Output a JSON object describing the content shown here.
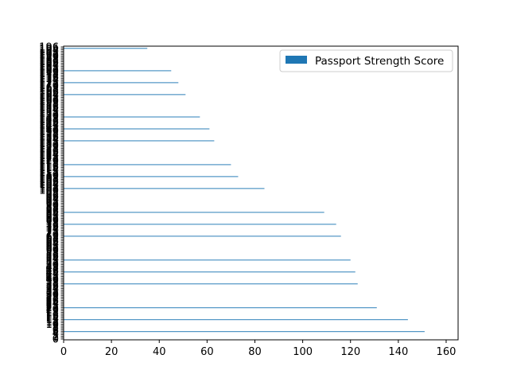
{
  "chart_data": {
    "type": "bar",
    "orientation": "horizontal",
    "title": "",
    "xlabel": "",
    "ylabel": "",
    "xlim": [
      0,
      165
    ],
    "xticks": [
      0,
      20,
      40,
      60,
      80,
      100,
      120,
      140,
      160
    ],
    "ylim": [
      -0.5,
      196.5
    ],
    "y_tick_labels": [
      "0",
      "1",
      "2",
      "3",
      "4",
      "5",
      "6",
      "7",
      "8",
      "9",
      "10",
      "11",
      "12",
      "13",
      "14",
      "15",
      "16",
      "17",
      "18",
      "19",
      "20",
      "21",
      "22",
      "23",
      "24",
      "25",
      "26",
      "27",
      "28",
      "29",
      "30",
      "31",
      "32",
      "33",
      "34",
      "35",
      "36",
      "37",
      "38",
      "39",
      "40",
      "41",
      "42",
      "43",
      "44",
      "45",
      "46",
      "47",
      "48",
      "49",
      "50",
      "51",
      "52",
      "53",
      "54",
      "55",
      "56",
      "57",
      "58",
      "59",
      "60",
      "61",
      "62",
      "63",
      "64",
      "65",
      "66",
      "67",
      "68",
      "69",
      "70",
      "71",
      "72",
      "73",
      "74",
      "75",
      "76",
      "77",
      "78",
      "79",
      "80",
      "81",
      "82",
      "83",
      "84",
      "85",
      "86",
      "87",
      "88",
      "89",
      "90",
      "91",
      "92",
      "93",
      "94",
      "95",
      "96",
      "97",
      "98",
      "99",
      "100",
      "101",
      "102",
      "103",
      "104",
      "105",
      "106",
      "107",
      "108",
      "109",
      "110",
      "111",
      "112",
      "113",
      "114",
      "115",
      "116",
      "117",
      "118",
      "119",
      "120",
      "121",
      "122",
      "123",
      "124",
      "125",
      "126",
      "127",
      "128",
      "129",
      "130",
      "131",
      "132",
      "133",
      "134",
      "135",
      "136",
      "137",
      "138",
      "139",
      "140",
      "141",
      "142",
      "143",
      "144",
      "145",
      "146",
      "147",
      "148",
      "149",
      "150",
      "151",
      "152",
      "153",
      "154",
      "155",
      "156",
      "157",
      "158",
      "159",
      "160",
      "161",
      "162",
      "163",
      "164",
      "165",
      "166",
      "167",
      "168",
      "169",
      "170",
      "171",
      "172",
      "173",
      "174",
      "175",
      "176",
      "177",
      "178",
      "179",
      "180",
      "181",
      "182",
      "183",
      "184",
      "185",
      "186",
      "187",
      "188",
      "189",
      "190",
      "191",
      "192",
      "193",
      "194",
      "195",
      "196"
    ],
    "series": [
      {
        "name": "Passport Strength Score",
        "color": "#1f77b4",
        "points": [
          {
            "y": 5,
            "value": 151
          },
          {
            "y": 13,
            "value": 144
          },
          {
            "y": 21,
            "value": 131
          },
          {
            "y": 37,
            "value": 123
          },
          {
            "y": 45,
            "value": 122
          },
          {
            "y": 53,
            "value": 120
          },
          {
            "y": 69,
            "value": 116
          },
          {
            "y": 77,
            "value": 114
          },
          {
            "y": 85,
            "value": 109
          },
          {
            "y": 101,
            "value": 84
          },
          {
            "y": 109,
            "value": 73
          },
          {
            "y": 117,
            "value": 70
          },
          {
            "y": 133,
            "value": 63
          },
          {
            "y": 141,
            "value": 61
          },
          {
            "y": 149,
            "value": 57
          },
          {
            "y": 164,
            "value": 51
          },
          {
            "y": 172,
            "value": 48
          },
          {
            "y": 180,
            "value": 45
          },
          {
            "y": 195,
            "value": 35
          }
        ]
      }
    ],
    "legend": {
      "position": "top-right"
    },
    "grid": false
  }
}
